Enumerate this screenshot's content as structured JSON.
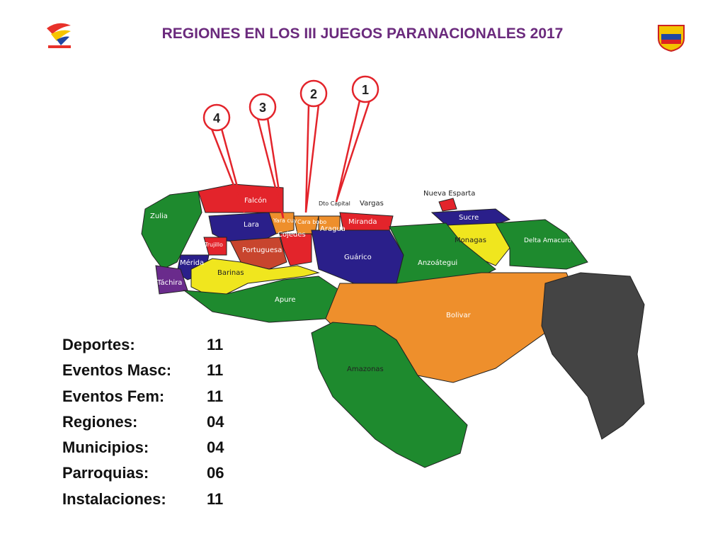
{
  "header": {
    "title": "REGIONES EN LOS III JUEGOS PARANACIONALES 2017"
  },
  "callouts": [
    "1",
    "2",
    "3",
    "4"
  ],
  "regions": [
    "Zulia",
    "Falcón",
    "Lara",
    "Yara cuy",
    "Cara bobo",
    "Cojedes",
    "Aragua",
    "Dto Capital",
    "Vargas",
    "Miranda",
    "Guárico",
    "Trujillo",
    "Portuguesa",
    "Mérida",
    "Táchira",
    "Barinas",
    "Apure",
    "Nueva Esparta",
    "Sucre",
    "Monagas",
    "Delta Amacuro",
    "Anzoátegui",
    "Bolivar",
    "Amazonas"
  ],
  "stats": {
    "rows": [
      [
        "Deportes:",
        "11"
      ],
      [
        "Eventos Masc:",
        "11"
      ],
      [
        "Eventos Fem:",
        "11"
      ],
      [
        "Regiones:",
        "04"
      ],
      [
        "Municipios:",
        "04"
      ],
      [
        "Parroquias:",
        "06"
      ],
      [
        "Instalaciones:",
        "11"
      ]
    ]
  }
}
